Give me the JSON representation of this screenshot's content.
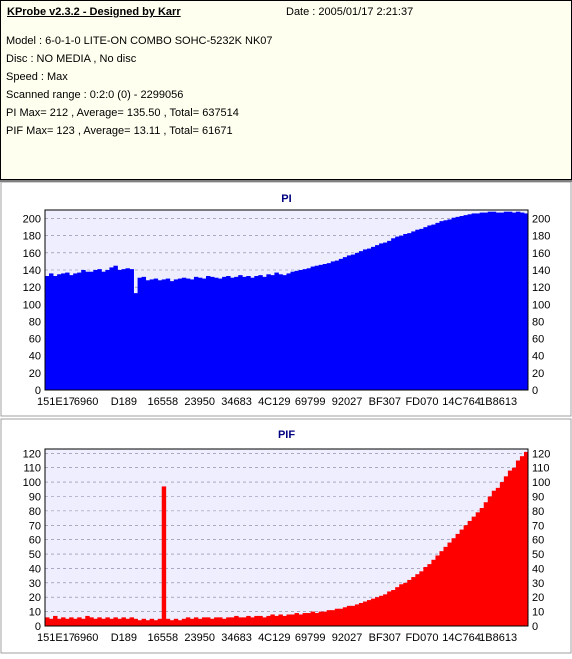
{
  "header": {
    "title": "KProbe v2.3.2 - Designed by Karr",
    "date": "Date : 2005/01/17 2:21:37",
    "lines": [
      "Model : 6-0-1-0 LITE-ON COMBO SOHC-5232K NK07",
      "Disc : NO MEDIA , No disc",
      "Speed : Max",
      "Scanned range : 0:2:0 (0) - 2299056",
      "PI Max= 212 , Average= 135.50 , Total= 637514",
      "PIF Max= 123 , Average= 13.11 , Total= 61671"
    ]
  },
  "colors": {
    "pi": "#0000ff",
    "pif": "#ff0000",
    "plot_bg": "#eeeeff",
    "panel_bg": "#ffffff",
    "title": "#000080"
  },
  "chart_data": [
    {
      "type": "area",
      "title": "PI",
      "ylim": [
        0,
        210
      ],
      "yticks": [
        0,
        20,
        40,
        60,
        80,
        100,
        120,
        140,
        160,
        180,
        200
      ],
      "x_tick_labels": [
        "151E17",
        "6960",
        "D189",
        "16558",
        "23950",
        "34683",
        "4C129",
        "69799",
        "92027",
        "BF307",
        "FD070",
        "14C764",
        "1B8613"
      ],
      "grid": true,
      "series": [
        {
          "name": "PI",
          "color": "#0000ff",
          "values": [
            133,
            136,
            133,
            135,
            136,
            137,
            134,
            136,
            137,
            140,
            138,
            138,
            140,
            141,
            138,
            140,
            143,
            145,
            140,
            141,
            142,
            141,
            113,
            131,
            132,
            128,
            129,
            130,
            128,
            129,
            130,
            127,
            129,
            130,
            131,
            130,
            129,
            132,
            131,
            130,
            133,
            132,
            131,
            130,
            132,
            133,
            131,
            132,
            134,
            132,
            133,
            131,
            133,
            134,
            132,
            135,
            134,
            137,
            135,
            134,
            136,
            138,
            139,
            140,
            141,
            142,
            144,
            145,
            146,
            147,
            148,
            150,
            151,
            153,
            155,
            157,
            158,
            160,
            162,
            164,
            165,
            167,
            169,
            171,
            172,
            174,
            177,
            179,
            180,
            182,
            183,
            185,
            187,
            188,
            190,
            192,
            193,
            195,
            197,
            198,
            199,
            201,
            202,
            203,
            204,
            205,
            206,
            206,
            207,
            207,
            208,
            208,
            207,
            207,
            208,
            208,
            207,
            208,
            207,
            206
          ]
        }
      ]
    },
    {
      "type": "area",
      "title": "PIF",
      "ylim": [
        0,
        123
      ],
      "yticks": [
        0,
        10,
        20,
        30,
        40,
        50,
        60,
        70,
        80,
        90,
        100,
        110,
        120
      ],
      "x_tick_labels": [
        "151E17",
        "6960",
        "D189",
        "16558",
        "23950",
        "34683",
        "4C129",
        "69799",
        "92027",
        "BF307",
        "FD070",
        "14C764",
        "1B8613"
      ],
      "grid": true,
      "series": [
        {
          "name": "PIF",
          "color": "#ff0000",
          "values": [
            6,
            5,
            7,
            5,
            6,
            5,
            6,
            5,
            6,
            5,
            7,
            6,
            5,
            6,
            5,
            6,
            5,
            6,
            5,
            6,
            5,
            6,
            5,
            4,
            5,
            4,
            5,
            4,
            5,
            97,
            5,
            4,
            5,
            4,
            5,
            6,
            5,
            6,
            5,
            6,
            6,
            5,
            6,
            6,
            5,
            6,
            6,
            7,
            6,
            6,
            7,
            6,
            7,
            7,
            6,
            7,
            8,
            7,
            8,
            7,
            8,
            8,
            9,
            8,
            9,
            9,
            10,
            9,
            10,
            10,
            11,
            11,
            12,
            12,
            13,
            14,
            14,
            15,
            16,
            17,
            18,
            19,
            20,
            21,
            22,
            24,
            25,
            27,
            29,
            30,
            32,
            34,
            36,
            38,
            41,
            43,
            46,
            49,
            52,
            55,
            58,
            61,
            64,
            67,
            70,
            73,
            76,
            79,
            82,
            86,
            90,
            94,
            96,
            100,
            104,
            108,
            110,
            115,
            118,
            121
          ]
        }
      ]
    }
  ]
}
